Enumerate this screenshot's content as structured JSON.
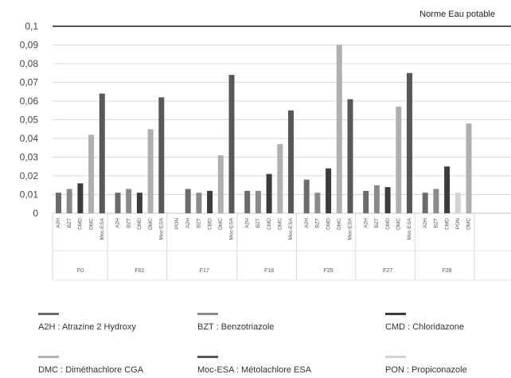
{
  "chart_data": {
    "type": "bar",
    "norm": {
      "label": "Norme Eau potable",
      "value": 0.1,
      "color": "#555555"
    },
    "y_ticks": [
      "0",
      "0,01",
      "0,02",
      "0,03",
      "0,04",
      "0,05",
      "0,06",
      "0,07",
      "0,08",
      "0,09",
      "0,1"
    ],
    "ylim": [
      0,
      0.1
    ],
    "grid": true,
    "legend_position": "bottom",
    "series_styles": {
      "A2H": {
        "label": "A2H : Atrazine 2 Hydroxy",
        "color": "#6b6b6b"
      },
      "BZT": {
        "label": "BZT : Benzotriazole",
        "color": "#8a8a8a"
      },
      "CMD": {
        "label": "CMD : Chloridazone",
        "color": "#3c3c3c"
      },
      "DMC": {
        "label": "DMC : Diméthachlore CGA",
        "color": "#b0b0b0"
      },
      "Moc-ESA": {
        "label": "Moc-ESA : Métolachlore ESA",
        "color": "#585858"
      },
      "PON": {
        "label": "PON : Propiconazole",
        "color": "#d4d4d4"
      }
    },
    "groups": [
      {
        "label": "F0",
        "bars": [
          {
            "series": "A2H",
            "tick": "A2H",
            "value": 0.011
          },
          {
            "series": "BZT",
            "tick": "BZT",
            "value": 0.013
          },
          {
            "series": "CMD",
            "tick": "CMD",
            "value": 0.016
          },
          {
            "series": "DMC",
            "tick": "DMC",
            "value": 0.042
          },
          {
            "series": "Moc-ESA",
            "tick": "Moc-ESA",
            "value": 0.064
          }
        ]
      },
      {
        "label": "F02",
        "bars": [
          {
            "series": "A2H",
            "tick": "A2H",
            "value": 0.011
          },
          {
            "series": "BZT",
            "tick": "BZT",
            "value": 0.013
          },
          {
            "series": "CMD",
            "tick": "CMD",
            "value": 0.011
          },
          {
            "series": "DMC",
            "tick": "DMC",
            "value": 0.045
          },
          {
            "series": "Moc-ESA",
            "tick": "Moc-ESA",
            "value": 0.062
          }
        ]
      },
      {
        "label": "F17",
        "bars": [
          {
            "series": "PON",
            "tick": "PON",
            "value": 0
          },
          {
            "series": "A2H",
            "tick": "A2H",
            "value": 0.013
          },
          {
            "series": "BZT",
            "tick": "BZT",
            "value": 0.011
          },
          {
            "series": "CMD",
            "tick": "CMD",
            "value": 0.012
          },
          {
            "series": "DMC",
            "tick": "DMC",
            "value": 0.031
          },
          {
            "series": "Moc-ESA",
            "tick": "Moc-ESA",
            "value": 0.074
          }
        ]
      },
      {
        "label": "F18",
        "bars": [
          {
            "series": "A2H",
            "tick": "A2H",
            "value": 0.012
          },
          {
            "series": "BZT",
            "tick": "BZT",
            "value": 0.012
          },
          {
            "series": "CMD",
            "tick": "CMD",
            "value": 0.021
          },
          {
            "series": "DMC",
            "tick": "DMC",
            "value": 0.037
          },
          {
            "series": "Moc-ESA",
            "tick": "Moc-ESA",
            "value": 0.055
          }
        ]
      },
      {
        "label": "F25",
        "bars": [
          {
            "series": "A2H",
            "tick": "A2H",
            "value": 0.018
          },
          {
            "series": "BZT",
            "tick": "BZT",
            "value": 0.011
          },
          {
            "series": "CMD",
            "tick": "CMD",
            "value": 0.024
          },
          {
            "series": "DMC",
            "tick": "DMC",
            "value": 0.09
          },
          {
            "series": "Moc-ESA",
            "tick": "Moc-ESA",
            "value": 0.061
          }
        ]
      },
      {
        "label": "F27",
        "bars": [
          {
            "series": "A2H",
            "tick": "A2H",
            "value": 0.012
          },
          {
            "series": "BZT",
            "tick": "BZT",
            "value": 0.015
          },
          {
            "series": "CMD",
            "tick": "CMD",
            "value": 0.014
          },
          {
            "series": "DMC",
            "tick": "DMC",
            "value": 0.057
          },
          {
            "series": "Moc-ESA",
            "tick": "Moc-ESA",
            "value": 0.075
          }
        ]
      },
      {
        "label": "F28",
        "bars": [
          {
            "series": "A2H",
            "tick": "A2H",
            "value": 0.011
          },
          {
            "series": "BZT",
            "tick": "BZT",
            "value": 0.013
          },
          {
            "series": "CMD",
            "tick": "CMD",
            "value": 0.025
          },
          {
            "series": "PON",
            "tick": "PON",
            "value": 0.011
          },
          {
            "series": "DMC",
            "tick": "DMC",
            "value": 0.048
          }
        ]
      }
    ]
  }
}
